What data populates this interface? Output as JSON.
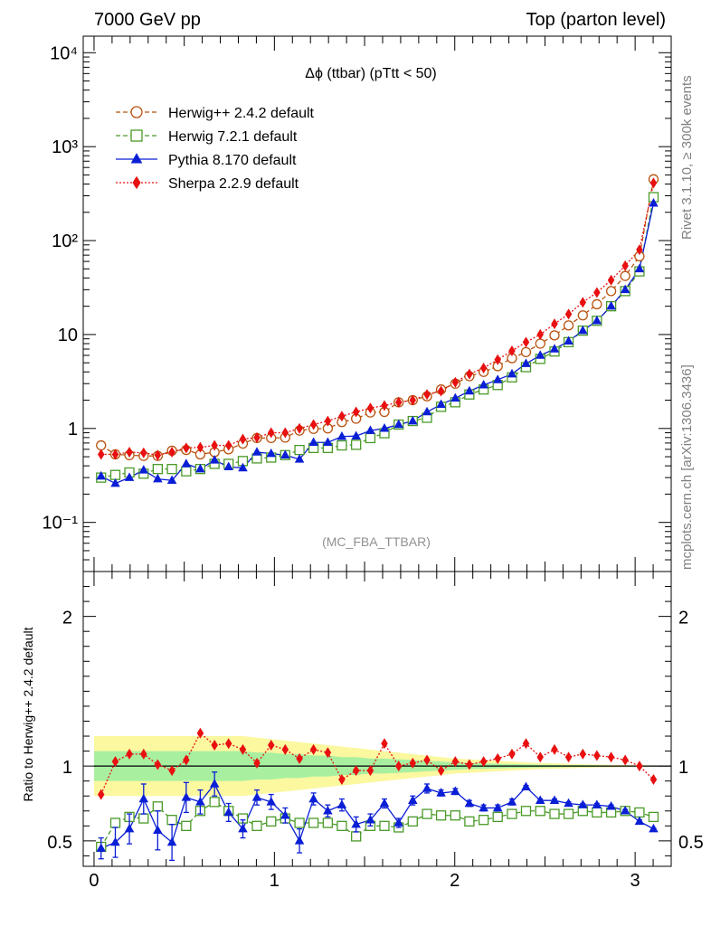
{
  "header": {
    "left": "7000 GeV pp",
    "right": "Top (parton level)"
  },
  "side_labels": {
    "rivet": "Rivet 3.1.10, ≥ 300k events",
    "mcplots": "mcplots.cern.ch [arXiv:1306.3436]"
  },
  "watermark": "(MC_FBA_TTBAR)",
  "chart_data": [
    {
      "type": "line",
      "title": "Δϕ (ttbar) (pTtt < 50)",
      "yscale": "log",
      "ylim": [
        0.03,
        15000
      ],
      "xlim": [
        -0.06,
        3.2
      ],
      "ytick_labels": [
        "10⁻¹",
        "1",
        "10",
        "10²",
        "10³",
        "10⁴"
      ],
      "legend_position": "top-left",
      "x": [
        0.039,
        0.118,
        0.196,
        0.275,
        0.353,
        0.432,
        0.511,
        0.589,
        0.668,
        0.746,
        0.825,
        0.903,
        0.982,
        1.06,
        1.139,
        1.217,
        1.296,
        1.374,
        1.453,
        1.532,
        1.61,
        1.689,
        1.767,
        1.846,
        1.924,
        2.003,
        2.081,
        2.16,
        2.238,
        2.317,
        2.395,
        2.474,
        2.553,
        2.631,
        2.71,
        2.788,
        2.867,
        2.945,
        3.024,
        3.102
      ],
      "series": [
        {
          "name": "Herwig++ 2.4.2 default",
          "color": "#b8520e",
          "marker": "open-circle",
          "line": "dashed",
          "values": [
            0.66,
            0.53,
            0.52,
            0.51,
            0.51,
            0.58,
            0.59,
            0.53,
            0.56,
            0.6,
            0.69,
            0.79,
            0.79,
            0.8,
            0.95,
            0.99,
            1.0,
            1.17,
            1.27,
            1.48,
            1.5,
            1.9,
            2.0,
            2.2,
            2.6,
            3.0,
            3.6,
            4.0,
            4.6,
            5.6,
            6.5,
            8.0,
            9.8,
            12.5,
            16.0,
            21.0,
            29.0,
            42.0,
            68.0,
            450.0
          ]
        },
        {
          "name": "Herwig 7.2.1 default",
          "color": "#4a9a28",
          "marker": "open-square",
          "line": "dashed",
          "values": [
            0.3,
            0.32,
            0.34,
            0.33,
            0.37,
            0.37,
            0.35,
            0.37,
            0.42,
            0.42,
            0.45,
            0.48,
            0.49,
            0.52,
            0.59,
            0.62,
            0.62,
            0.66,
            0.67,
            0.79,
            0.89,
            1.1,
            1.2,
            1.3,
            1.7,
            1.9,
            2.3,
            2.6,
            2.9,
            3.5,
            4.5,
            5.5,
            6.6,
            8.3,
            11.0,
            14.0,
            20.0,
            29.0,
            47.0,
            290.0
          ]
        },
        {
          "name": "Pythia 8.170 default",
          "color": "#0a1ed6",
          "marker": "filled-triangle",
          "line": "solid",
          "values": [
            0.31,
            0.26,
            0.3,
            0.36,
            0.29,
            0.28,
            0.42,
            0.37,
            0.46,
            0.39,
            0.38,
            0.56,
            0.54,
            0.52,
            0.47,
            0.71,
            0.71,
            0.82,
            0.83,
            0.95,
            1.0,
            1.1,
            1.2,
            1.5,
            1.8,
            2.1,
            2.5,
            2.9,
            3.3,
            3.8,
            4.9,
            6.0,
            7.0,
            8.5,
            11.0,
            14.0,
            20.0,
            30.0,
            50.0,
            250.0
          ]
        },
        {
          "name": "Sherpa 2.2.9 default",
          "color": "#e81010",
          "marker": "filled-diamond",
          "line": "dotted",
          "values": [
            0.53,
            0.53,
            0.56,
            0.55,
            0.52,
            0.56,
            0.62,
            0.63,
            0.66,
            0.66,
            0.77,
            0.8,
            0.9,
            0.9,
            1.0,
            1.1,
            1.2,
            1.35,
            1.5,
            1.65,
            1.75,
            1.9,
            2.0,
            2.3,
            2.5,
            3.1,
            3.8,
            4.4,
            5.4,
            6.7,
            8.3,
            10.0,
            13.0,
            16.5,
            22.0,
            28.0,
            38.0,
            54.0,
            80.0,
            410.0
          ]
        }
      ]
    },
    {
      "type": "line",
      "ylabel": "Ratio to Herwig++ 2.4.2 default",
      "ylim": [
        0.33,
        2.3
      ],
      "xlim": [
        -0.06,
        3.2
      ],
      "xticks": [
        0,
        1,
        2,
        3
      ],
      "yticks": [
        0.5,
        1,
        2
      ],
      "x": [
        0.039,
        0.118,
        0.196,
        0.275,
        0.353,
        0.432,
        0.511,
        0.589,
        0.668,
        0.746,
        0.825,
        0.903,
        0.982,
        1.06,
        1.139,
        1.217,
        1.296,
        1.374,
        1.453,
        1.532,
        1.61,
        1.689,
        1.767,
        1.846,
        1.924,
        2.003,
        2.081,
        2.16,
        2.238,
        2.317,
        2.395,
        2.474,
        2.553,
        2.631,
        2.71,
        2.788,
        2.867,
        2.945,
        3.024,
        3.102
      ],
      "bands": {
        "yellow_half_width": [
          0.2,
          0.2,
          0.2,
          0.2,
          0.2,
          0.2,
          0.2,
          0.2,
          0.2,
          0.2,
          0.2,
          0.19,
          0.18,
          0.17,
          0.16,
          0.15,
          0.14,
          0.13,
          0.12,
          0.11,
          0.1,
          0.09,
          0.08,
          0.07,
          0.06,
          0.05,
          0.045,
          0.04,
          0.035,
          0.03,
          0.025,
          0.02,
          0.018,
          0.015,
          0.012,
          0.01,
          0.008,
          0.006,
          0.005,
          0.004
        ],
        "green_half_width": [
          0.1,
          0.1,
          0.1,
          0.1,
          0.1,
          0.1,
          0.1,
          0.1,
          0.1,
          0.1,
          0.1,
          0.09,
          0.09,
          0.08,
          0.08,
          0.07,
          0.07,
          0.06,
          0.06,
          0.05,
          0.05,
          0.045,
          0.04,
          0.035,
          0.03,
          0.025,
          0.02,
          0.018,
          0.015,
          0.013,
          0.011,
          0.009,
          0.008,
          0.007,
          0.006,
          0.005,
          0.004,
          0.003,
          0.002,
          0.002
        ]
      },
      "series": [
        {
          "name": "Herwig 7.2.1 default",
          "color": "#4a9a28",
          "marker": "open-square",
          "line": "dashed",
          "values": [
            0.46,
            0.62,
            0.66,
            0.65,
            0.73,
            0.64,
            0.6,
            0.7,
            0.76,
            0.7,
            0.65,
            0.6,
            0.63,
            0.65,
            0.62,
            0.62,
            0.62,
            0.6,
            0.53,
            0.6,
            0.6,
            0.59,
            0.63,
            0.68,
            0.67,
            0.67,
            0.63,
            0.64,
            0.66,
            0.68,
            0.7,
            0.7,
            0.68,
            0.68,
            0.7,
            0.69,
            0.69,
            0.7,
            0.69,
            0.66
          ]
        },
        {
          "name": "Pythia 8.170 default",
          "color": "#0a1ed6",
          "marker": "filled-triangle",
          "line": "solid",
          "values": [
            0.45,
            0.49,
            0.58,
            0.78,
            0.57,
            0.49,
            0.79,
            0.76,
            0.88,
            0.69,
            0.58,
            0.79,
            0.76,
            0.67,
            0.5,
            0.78,
            0.7,
            0.74,
            0.61,
            0.64,
            0.75,
            0.62,
            0.77,
            0.85,
            0.82,
            0.83,
            0.75,
            0.72,
            0.72,
            0.76,
            0.86,
            0.77,
            0.77,
            0.75,
            0.74,
            0.74,
            0.73,
            0.7,
            0.63,
            0.58
          ],
          "errors": [
            0.07,
            0.1,
            0.1,
            0.1,
            0.13,
            0.12,
            0.1,
            0.08,
            0.08,
            0.06,
            0.06,
            0.05,
            0.05,
            0.05,
            0.08,
            0.04,
            0.04,
            0.04,
            0.05,
            0.04,
            0.03,
            0.03,
            0.03,
            0.03,
            0.02,
            0.02,
            0.02,
            0.02,
            0.02,
            0.02,
            0.01,
            0.01,
            0.01,
            0.01,
            0.01,
            0.01,
            0.01,
            0.01,
            0.01,
            0.005
          ]
        },
        {
          "name": "Sherpa 2.2.9 default",
          "color": "#e81010",
          "marker": "filled-diamond",
          "line": "dotted",
          "values": [
            0.81,
            1.03,
            1.08,
            1.08,
            1.01,
            0.97,
            1.04,
            1.22,
            1.14,
            1.15,
            1.11,
            1.02,
            1.14,
            1.11,
            1.05,
            1.11,
            1.09,
            0.91,
            0.97,
            0.97,
            1.15,
            1.0,
            1.02,
            1.04,
            0.97,
            1.03,
            1.01,
            1.03,
            1.05,
            1.08,
            1.15,
            1.06,
            1.11,
            1.06,
            1.08,
            1.07,
            1.06,
            1.04,
            1.0,
            0.91
          ]
        }
      ]
    }
  ]
}
